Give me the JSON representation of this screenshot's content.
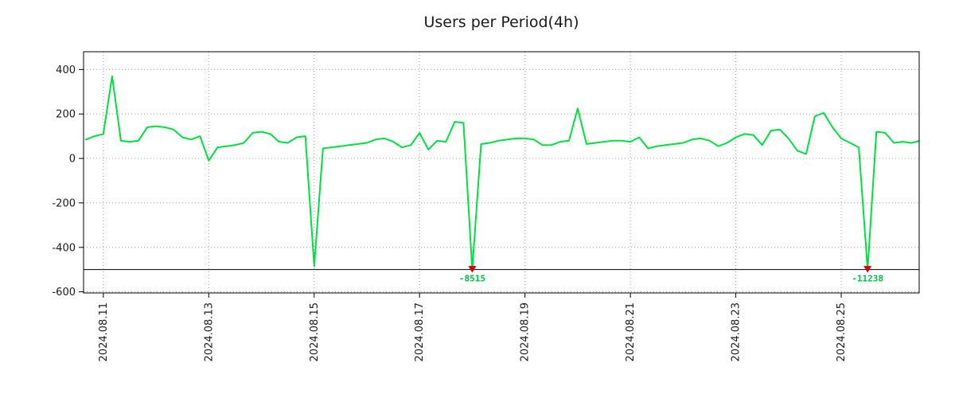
{
  "chart_data": {
    "type": "line",
    "title": "Users per Period(4h)",
    "line_color": "#00e040",
    "marker_color": "#dd0000",
    "annotation_text_color": "#00c043",
    "grid_color": "#9a9a9a",
    "border_color": "#000000",
    "clip_line_color": "#000000",
    "clip_value": -500,
    "ylim": [
      -605,
      480
    ],
    "yticks": [
      400,
      200,
      0,
      -200,
      -400,
      -600
    ],
    "xtick_labels": [
      "2024.08.11",
      "2024.08.13",
      "2024.08.15",
      "2024.08.17",
      "2024.08.19",
      "2024.08.21",
      "2024.08.23",
      "2024.08.25"
    ],
    "xtick_interval_hours": 48,
    "xlim_hours": [
      -9,
      371.5
    ],
    "x_start": "2024.08.10 16:00",
    "x_first_point_offset_hours": -8,
    "interval_hours": 4,
    "grid": true,
    "legend": "none",
    "values": [
      85,
      100,
      110,
      370,
      80,
      75,
      80,
      140,
      145,
      140,
      130,
      95,
      85,
      100,
      -10,
      50,
      55,
      60,
      70,
      115,
      120,
      110,
      75,
      70,
      95,
      100,
      -485,
      45,
      50,
      55,
      60,
      65,
      70,
      85,
      90,
      75,
      50,
      60,
      115,
      40,
      80,
      75,
      165,
      160,
      -8515,
      65,
      70,
      80,
      85,
      90,
      90,
      85,
      60,
      60,
      75,
      80,
      225,
      65,
      70,
      75,
      80,
      80,
      75,
      95,
      45,
      55,
      60,
      65,
      70,
      85,
      90,
      80,
      55,
      70,
      95,
      110,
      105,
      60,
      125,
      130,
      90,
      35,
      20,
      190,
      205,
      140,
      90,
      70,
      50,
      -11238,
      120,
      115,
      70,
      75,
      70,
      80
    ],
    "annotations": [
      {
        "index": 44,
        "label": "-8515"
      },
      {
        "index": 89,
        "label": "-11238"
      }
    ]
  }
}
